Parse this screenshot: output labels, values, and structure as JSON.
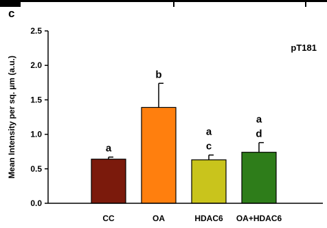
{
  "panel_label": "c",
  "chart_data": {
    "type": "bar",
    "categories": [
      "CC",
      "OA",
      "HDAC6",
      "OA+HDAC6"
    ],
    "values": [
      0.64,
      1.39,
      0.63,
      0.74
    ],
    "errors": [
      0.03,
      0.35,
      0.07,
      0.14
    ],
    "significance": [
      [
        "a"
      ],
      [
        "b"
      ],
      [
        "a",
        "c"
      ],
      [
        "a",
        "d"
      ]
    ],
    "annotation": "pT181",
    "ylabel": "Mean Intensity per sq. µm (a.u.)",
    "xlabel": "",
    "ylim": [
      0,
      2.5
    ],
    "yticks": [
      "0.0",
      "0.5",
      "1.0",
      "1.5",
      "2.0",
      "2.5"
    ],
    "bar_colors": [
      "#7b1a0c",
      "#ff7f0e",
      "#c9c41c",
      "#2e7d1a"
    ],
    "grid": false
  }
}
